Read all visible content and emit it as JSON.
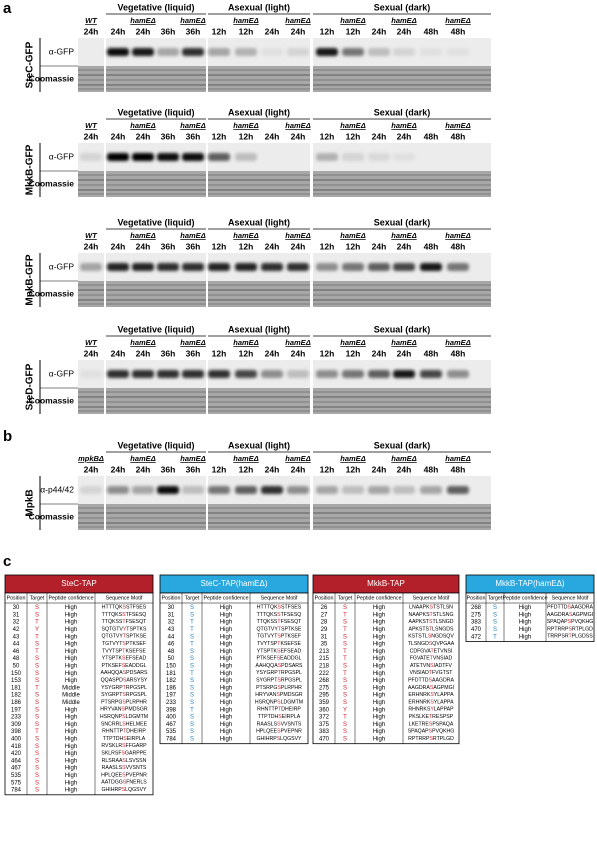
{
  "panel_a": {
    "letter": "a",
    "blots": [
      {
        "label": "SteC-GFP",
        "rows": [
          "α-GFP",
          "Coomassie"
        ],
        "groups": [
          "Vegetative (liquid)",
          "Asexual (light)",
          "Sexual (dark)"
        ],
        "lanes": [
          {
            "genotype": "WT",
            "time": "24h"
          },
          {
            "time": "24h"
          },
          {
            "genotype": "hamEΔ",
            "time": "24h"
          },
          {
            "time": "36h"
          },
          {
            "genotype": "hamEΔ",
            "time": "36h"
          },
          {
            "time": "12h"
          },
          {
            "genotype": "hamEΔ",
            "time": "12h"
          },
          {
            "time": "24h"
          },
          {
            "genotype": "hamEΔ",
            "time": "24h"
          },
          {
            "time": "12h"
          },
          {
            "genotype": "hamEΔ",
            "time": "12h"
          },
          {
            "time": "24h"
          },
          {
            "genotype": "hamEΔ",
            "time": "24h"
          },
          {
            "time": "48h"
          },
          {
            "genotype": "hamEΔ",
            "time": "48h"
          }
        ]
      },
      {
        "label": "MkkB-GFP",
        "rows": [
          "α-GFP",
          "Coomassie"
        ],
        "groups": [
          "Vegetative (liquid)",
          "Asexual (light)",
          "Sexual (dark)"
        ],
        "lanes": [
          {
            "genotype": "WT",
            "time": "24h"
          },
          {
            "time": "24h"
          },
          {
            "genotype": "hamEΔ",
            "time": "24h"
          },
          {
            "time": "36h"
          },
          {
            "genotype": "hamEΔ",
            "time": "36h"
          },
          {
            "time": "12h"
          },
          {
            "genotype": "hamEΔ",
            "time": "12h"
          },
          {
            "time": "24h"
          },
          {
            "genotype": "hamEΔ",
            "time": "24h"
          },
          {
            "time": "12h"
          },
          {
            "genotype": "hamEΔ",
            "time": "12h"
          },
          {
            "time": "24h"
          },
          {
            "genotype": "hamEΔ",
            "time": "24h"
          },
          {
            "time": "48h"
          },
          {
            "genotype": "hamEΔ",
            "time": "48h"
          }
        ]
      },
      {
        "label": "MpkB-GFP",
        "rows": [
          "α-GFP",
          "Coomassie"
        ],
        "groups": [
          "Vegetative (liquid)",
          "Asexual (light)",
          "Sexual (dark)"
        ],
        "lanes": [
          {
            "genotype": "WT",
            "time": "24h"
          },
          {
            "time": "24h"
          },
          {
            "genotype": "hamEΔ",
            "time": "24h"
          },
          {
            "time": "36h"
          },
          {
            "genotype": "hamEΔ",
            "time": "36h"
          },
          {
            "time": "12h"
          },
          {
            "genotype": "hamEΔ",
            "time": "12h"
          },
          {
            "time": "24h"
          },
          {
            "genotype": "hamEΔ",
            "time": "24h"
          },
          {
            "time": "12h"
          },
          {
            "genotype": "hamEΔ",
            "time": "12h"
          },
          {
            "time": "24h"
          },
          {
            "genotype": "hamEΔ",
            "time": "24h"
          },
          {
            "time": "48h"
          },
          {
            "genotype": "hamEΔ",
            "time": "48h"
          }
        ]
      },
      {
        "label": "SteD-GFP",
        "rows": [
          "α-GFP",
          "Coomassie"
        ],
        "groups": [
          "Vegetative (liquid)",
          "Asexual (light)",
          "Sexual (dark)"
        ],
        "lanes": [
          {
            "genotype": "WT",
            "time": "24h"
          },
          {
            "time": "24h"
          },
          {
            "genotype": "hamEΔ",
            "time": "24h"
          },
          {
            "time": "36h"
          },
          {
            "genotype": "hamEΔ",
            "time": "36h"
          },
          {
            "time": "12h"
          },
          {
            "genotype": "hamEΔ",
            "time": "12h"
          },
          {
            "time": "24h"
          },
          {
            "genotype": "hamEΔ",
            "time": "24h"
          },
          {
            "time": "12h"
          },
          {
            "genotype": "hamEΔ",
            "time": "12h"
          },
          {
            "time": "24h"
          },
          {
            "genotype": "hamEΔ",
            "time": "24h"
          },
          {
            "time": "48h"
          },
          {
            "genotype": "hamEΔ",
            "time": "48h"
          }
        ]
      }
    ]
  },
  "panel_b": {
    "letter": "b",
    "blots": [
      {
        "label": "MpkB",
        "rows": [
          "α-p44/42",
          "Coomassie"
        ],
        "groups": [
          "Vegetative (liquid)",
          "Asexual (light)",
          "Sexual (dark)"
        ],
        "lanes": [
          {
            "genotype": "mpkBΔ",
            "time": "24h"
          },
          {
            "time": "24h"
          },
          {
            "genotype": "hamEΔ",
            "time": "24h"
          },
          {
            "time": "36h"
          },
          {
            "genotype": "hamEΔ",
            "time": "36h"
          },
          {
            "time": "12h"
          },
          {
            "genotype": "hamEΔ",
            "time": "12h"
          },
          {
            "time": "24h"
          },
          {
            "genotype": "hamEΔ",
            "time": "24h"
          },
          {
            "time": "12h"
          },
          {
            "genotype": "hamEΔ",
            "time": "12h"
          },
          {
            "time": "24h"
          },
          {
            "genotype": "hamEΔ",
            "time": "24h"
          },
          {
            "time": "48h"
          },
          {
            "genotype": "hamEΔ",
            "time": "48h"
          }
        ]
      }
    ]
  },
  "panel_c": {
    "letter": "c",
    "tables": [
      {
        "title": "SteC-TAP",
        "columns": [
          "Position",
          "Target",
          "Peptide confidence",
          "Sequence Motif"
        ],
        "rows": [
          [
            30,
            "S",
            "High",
            "HTTTQKSSTFSES"
          ],
          [
            31,
            "S",
            "High",
            "TTTQKSSTFSESQ"
          ],
          [
            32,
            "T",
            "High",
            "TTQKSSTFSESQT"
          ],
          [
            42,
            "Y",
            "High",
            "SQTGTVYTSPTKS"
          ],
          [
            43,
            "T",
            "High",
            "QTGTVYTSPTKSE"
          ],
          [
            44,
            "S",
            "High",
            "TGTVYTSPTKSEF"
          ],
          [
            46,
            "T",
            "High",
            "TVYTSPTKSEFSE"
          ],
          [
            48,
            "S",
            "High",
            "YTSPTKSEFSEAD"
          ],
          [
            50,
            "S",
            "High",
            "PTKSEFSEADDGL"
          ],
          [
            150,
            "S",
            "High",
            "AAHQQASPDSARS"
          ],
          [
            153,
            "S",
            "High",
            "QQASPDSARSYSY"
          ],
          [
            181,
            "T",
            "Middle",
            "YSYGRPTRPGSPL"
          ],
          [
            182,
            "S",
            "Middle",
            "SYGRPTSRPGSPL"
          ],
          [
            186,
            "S",
            "Middle",
            "PTSRPGSPLRPHR"
          ],
          [
            197,
            "S",
            "High",
            "HRYVANSPMDSGR"
          ],
          [
            233,
            "S",
            "High",
            "HSRQNPSLDGMTM"
          ],
          [
            309,
            "S",
            "High",
            "SNCRRLSHELMEE"
          ],
          [
            398,
            "T",
            "High",
            "RHNTTPTDHEIRP"
          ],
          [
            400,
            "S",
            "High",
            "TTPTDHSEIRPLA"
          ],
          [
            418,
            "S",
            "High",
            "RVSKLRSFFGARP"
          ],
          [
            420,
            "S",
            "High",
            "SKLRSFSGARPPE"
          ],
          [
            464,
            "S",
            "High",
            "RLSRAASLSVSSN"
          ],
          [
            467,
            "S",
            "High",
            "RAASLSSVVSNTS"
          ],
          [
            535,
            "S",
            "High",
            "HPLQEESPVEPNR"
          ],
          [
            575,
            "S",
            "High",
            "AATDGGSFNERLS"
          ],
          [
            784,
            "S",
            "High",
            "GHIHRPSLQGSVY"
          ]
        ]
      },
      {
        "title": "SteC-TAP(hamEΔ)",
        "columns": [
          "Position",
          "Target",
          "Peptide confidence",
          "Sequence Motif"
        ],
        "rows": [
          [
            30,
            "S",
            "High",
            "HTTTQKSSTFSES"
          ],
          [
            31,
            "S",
            "High",
            "TTTQKSSTFSESQ"
          ],
          [
            32,
            "T",
            "High",
            "TTQKSSTFSESQT"
          ],
          [
            43,
            "T",
            "High",
            "QTGTVYTSPTKSE"
          ],
          [
            44,
            "S",
            "High",
            "TGTVYTSPTKSEF"
          ],
          [
            46,
            "T",
            "High",
            "TVYTSPTKSEFSE"
          ],
          [
            48,
            "S",
            "High",
            "YTSPTKSEFSEAD"
          ],
          [
            50,
            "S",
            "High",
            "PTKSEFSEADDGL"
          ],
          [
            150,
            "S",
            "High",
            "AAHQQASPDSARS"
          ],
          [
            181,
            "T",
            "High",
            "YSYGRPTRPGSPL"
          ],
          [
            182,
            "S",
            "High",
            "SYGRPTSRPGSPL"
          ],
          [
            186,
            "S",
            "High",
            "PTSRPGSPLRPHR"
          ],
          [
            197,
            "S",
            "High",
            "HRYVANSPMDSGR"
          ],
          [
            233,
            "S",
            "High",
            "HSRQNPSLDGMTM"
          ],
          [
            398,
            "T",
            "High",
            "RHNTTPTDHEIRP"
          ],
          [
            400,
            "S",
            "High",
            "TTPTDHSEIRPLA"
          ],
          [
            467,
            "S",
            "High",
            "RAASLSSVVSNTS"
          ],
          [
            535,
            "S",
            "High",
            "HPLQEESPVEPNR"
          ],
          [
            784,
            "S",
            "High",
            "GHIHRPSLQGSVY"
          ]
        ]
      },
      {
        "title": "MkkB-TAP",
        "columns": [
          "Position",
          "Target",
          "Peptide confidence",
          "Sequence Motif"
        ],
        "rows": [
          [
            26,
            "S",
            "High",
            "LNAAPKSTSTLSN"
          ],
          [
            27,
            "T",
            "High",
            "NAAPKSTSTLSNG"
          ],
          [
            28,
            "S",
            "High",
            "AAPKSTSTLSNGD"
          ],
          [
            29,
            "T",
            "High",
            "APKSTSTLSNGDS"
          ],
          [
            31,
            "S",
            "High",
            "KSTSTLSNGDSQV"
          ],
          [
            35,
            "S",
            "High",
            "TLSNGDSQVPGAA"
          ],
          [
            213,
            "T",
            "High",
            "CDFGVATETVNSI"
          ],
          [
            215,
            "T",
            "High",
            "FGVATETVNSIAD"
          ],
          [
            218,
            "S",
            "High",
            "ATETVNSIADTFV"
          ],
          [
            222,
            "T",
            "High",
            "VNSIADTFVGTST"
          ],
          [
            268,
            "S",
            "High",
            "PFDTTDSAAGDRA"
          ],
          [
            275,
            "S",
            "High",
            "AAGDRASAGPMGI"
          ],
          [
            295,
            "S",
            "High",
            "ERHNRKSYLAPPA"
          ],
          [
            359,
            "S",
            "High",
            "ERHNRKSYLAPPA"
          ],
          [
            360,
            "Y",
            "High",
            "RHNRKSYLAPPAP"
          ],
          [
            372,
            "T",
            "High",
            "PKSLKETRESPSP"
          ],
          [
            375,
            "S",
            "High",
            "LKETRESPSPAQA"
          ],
          [
            383,
            "S",
            "High",
            "SPAQAPSPVQKHG"
          ],
          [
            470,
            "S",
            "High",
            "RPTRRPSRTPLGD"
          ]
        ]
      },
      {
        "title": "MkkB-TAP(hamEΔ)",
        "columns": [
          "Position",
          "Target",
          "Peptide confidence",
          "Sequence Motif"
        ],
        "rows": [
          [
            268,
            "S",
            "High",
            "PFDTTDSAAGDRA"
          ],
          [
            275,
            "S",
            "High",
            "AAGDRASAGPMGI"
          ],
          [
            383,
            "S",
            "High",
            "SPAQAPSPVQKHG"
          ],
          [
            470,
            "S",
            "High",
            "RPTRRPSRTPLGD"
          ],
          [
            472,
            "T",
            "High",
            "TRRPSRTPLGDSS"
          ]
        ]
      }
    ]
  }
}
